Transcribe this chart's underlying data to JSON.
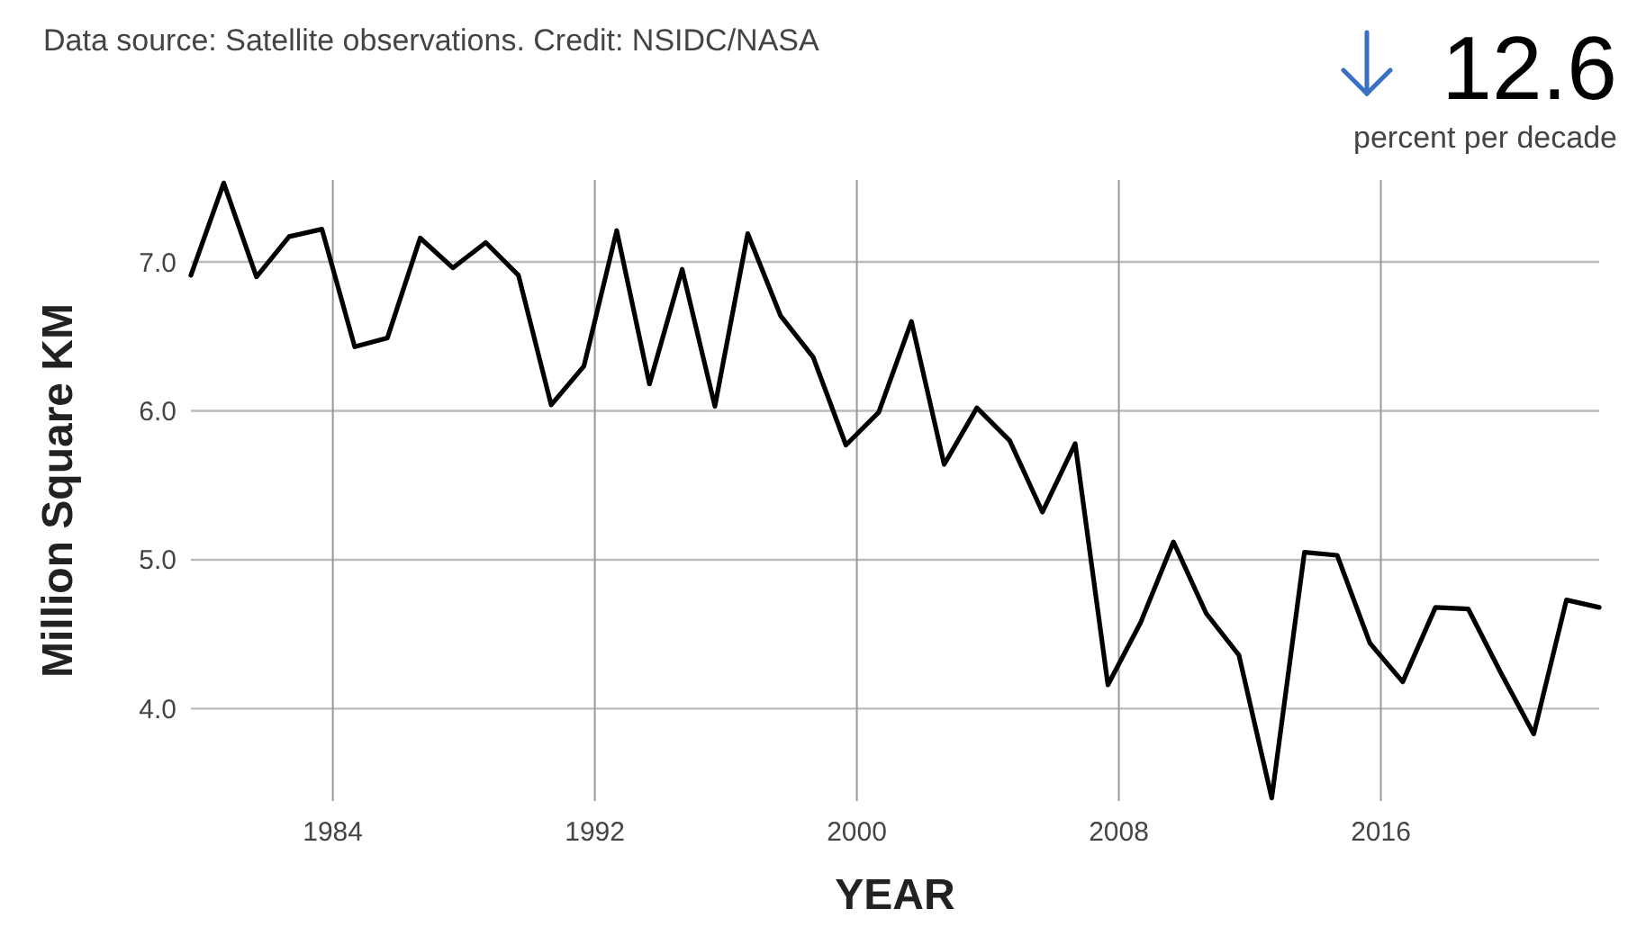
{
  "chart_data": {
    "type": "line",
    "xlabel": "YEAR",
    "ylabel": "Million Square KM",
    "annotations": [
      "Data source: Satellite observations. Credit: NSIDC/NASA",
      "12.6",
      "percent per decade"
    ],
    "x": [
      "1979-09",
      "1980-09",
      "1981-09",
      "1982-09",
      "1983-09",
      "1984-09",
      "1985-09",
      "1986-09",
      "1987-09",
      "1988-09",
      "1989-09",
      "1990-09",
      "1991-09",
      "1992-09",
      "1993-09",
      "1994-09",
      "1995-09",
      "1996-09",
      "1997-09",
      "1998-09",
      "1999-09",
      "2000-09",
      "2001-09",
      "2002-09",
      "2003-09",
      "2004-09",
      "2005-09",
      "2006-09",
      "2007-09",
      "2008-09",
      "2009-09",
      "2010-09",
      "2011-09",
      "2012-09",
      "2013-09",
      "2014-09",
      "2015-09",
      "2016-09",
      "2017-09",
      "2018-09",
      "2019-09",
      "2020-09",
      "2021-09",
      "2022-09"
    ],
    "series": [
      {
        "color": "#000000",
        "values": [
          6.91,
          7.53,
          6.9,
          7.17,
          7.22,
          6.43,
          6.49,
          7.16,
          6.96,
          7.13,
          6.91,
          6.04,
          6.3,
          7.21,
          6.18,
          6.95,
          6.03,
          7.19,
          6.64,
          6.36,
          5.77,
          5.99,
          6.6,
          5.64,
          6.02,
          5.8,
          5.32,
          5.78,
          4.16,
          4.58,
          5.12,
          4.64,
          4.36,
          3.4,
          5.05,
          5.03,
          4.44,
          4.18,
          4.68,
          4.67,
          4.24,
          3.83,
          4.73,
          4.68
        ]
      }
    ],
    "xlim": [
      "1979-09",
      "2022-09"
    ],
    "xticks": [
      {
        "value": "1984",
        "label": "1984"
      },
      {
        "value": "1992",
        "label": "1992"
      },
      {
        "value": "2000",
        "label": "2000"
      },
      {
        "value": "2008",
        "label": "2008"
      },
      {
        "value": "2016",
        "label": "2016"
      }
    ],
    "ylim": [
      3.38,
      7.55
    ],
    "yticks": [
      {
        "value": 4,
        "label": "4.0"
      },
      {
        "value": 5,
        "label": "5.0"
      },
      {
        "value": 6,
        "label": "6.0"
      },
      {
        "value": 7,
        "label": "7.0"
      }
    ],
    "grid": true,
    "marker": "none",
    "line_style": "solid"
  }
}
